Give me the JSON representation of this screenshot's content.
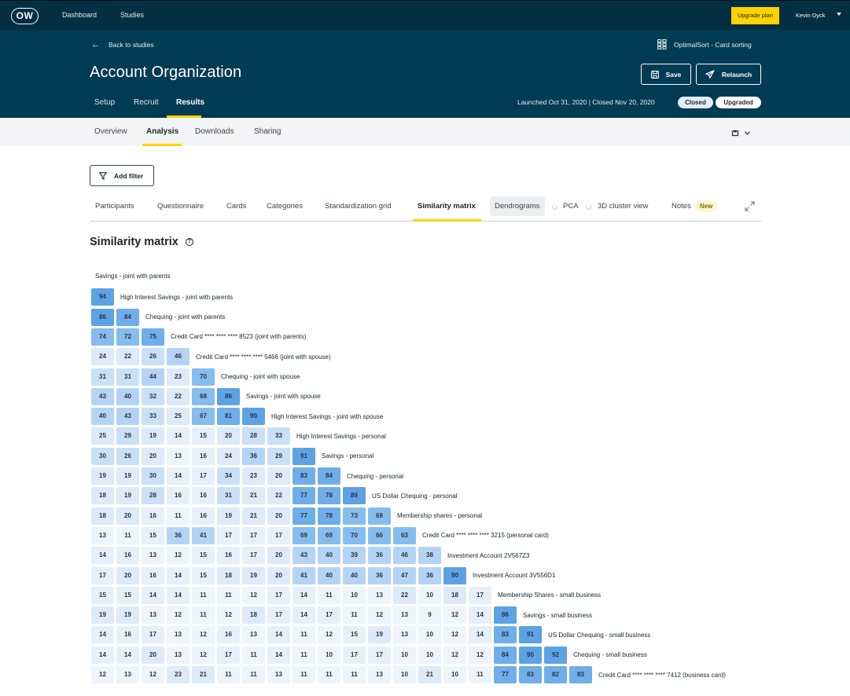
{
  "topnav": {
    "logo": "OW",
    "links": [
      "Dashboard",
      "Studies"
    ],
    "upgrade_label": "Upgrade plan",
    "user_name": "Kevin Dyck"
  },
  "study": {
    "back_label": "Back to studies",
    "title": "Account Organization",
    "type_label": "OptimalSort - Card sorting",
    "save_label": "Save",
    "relaunch_label": "Relaunch",
    "tabs": [
      "Setup",
      "Recruit",
      "Results"
    ],
    "active_tab": "Results",
    "dates": "Launched Oct 31, 2020 | Closed Nov 20, 2020",
    "badges": [
      "Closed",
      "Upgraded"
    ]
  },
  "results_tabs": {
    "items": [
      "Overview",
      "Analysis",
      "Downloads",
      "Sharing"
    ],
    "active": "Analysis"
  },
  "filter": {
    "label": "Add filter"
  },
  "analysis_tabs": {
    "items": [
      "Participants",
      "Questionnaire",
      "Cards",
      "Categories",
      "Standardization grid",
      "Similarity matrix",
      "Dendrograms",
      "PCA",
      "3D cluster view",
      "Notes"
    ],
    "active": "Similarity matrix",
    "new_badge": "New"
  },
  "matrix": {
    "title": "Similarity matrix",
    "colors": {
      "high": "#5fa3e6",
      "mid": "#b7d6f5",
      "low": "#ddebf9",
      "lowest": "#edf4fc"
    },
    "rows": [
      {
        "label": "Savings - joint with parents",
        "values": []
      },
      {
        "label": "High Interest Savings - joint with parents",
        "values": [
          94
        ]
      },
      {
        "label": "Chequing - joint with parents",
        "values": [
          86,
          84
        ]
      },
      {
        "label": "Credit Card **** **** **** 8523 (joint with parents)",
        "values": [
          74,
          72,
          75
        ]
      },
      {
        "label": "Credit Card **** **** **** 5466 (joint with spouse)",
        "values": [
          24,
          22,
          26,
          46
        ]
      },
      {
        "label": "Chequing - joint with spouse",
        "values": [
          31,
          31,
          44,
          23,
          70
        ]
      },
      {
        "label": "Savings - joint with spouse",
        "values": [
          43,
          40,
          32,
          22,
          68,
          86
        ]
      },
      {
        "label": "High Interest Savings - joint with spouse",
        "values": [
          40,
          43,
          33,
          25,
          67,
          81,
          90
        ]
      },
      {
        "label": "High Interest Savings - personal",
        "values": [
          25,
          29,
          19,
          14,
          15,
          20,
          28,
          33
        ]
      },
      {
        "label": "Savings - personal",
        "values": [
          30,
          26,
          20,
          13,
          16,
          24,
          36,
          29,
          91
        ]
      },
      {
        "label": "Chequing - personal",
        "values": [
          19,
          19,
          30,
          14,
          17,
          34,
          23,
          20,
          83,
          84
        ]
      },
      {
        "label": "US Dollar Chequing - personal",
        "values": [
          18,
          19,
          28,
          16,
          16,
          31,
          21,
          22,
          77,
          78,
          89
        ]
      },
      {
        "label": "Membership shares - personal",
        "values": [
          18,
          20,
          16,
          11,
          16,
          19,
          21,
          20,
          77,
          78,
          73,
          69
        ]
      },
      {
        "label": "Credit Card **** **** **** 3215 (personal card)",
        "values": [
          13,
          11,
          15,
          36,
          41,
          17,
          17,
          17,
          69,
          69,
          70,
          66,
          63
        ]
      },
      {
        "label": "Investment Account 2V567Z3",
        "values": [
          14,
          16,
          13,
          12,
          15,
          16,
          17,
          20,
          43,
          40,
          39,
          36,
          46,
          38
        ]
      },
      {
        "label": "Investment Account 3V556D1",
        "values": [
          17,
          20,
          16,
          14,
          15,
          18,
          19,
          20,
          41,
          40,
          40,
          36,
          47,
          36,
          90
        ]
      },
      {
        "label": "Membership Shares - small business",
        "values": [
          15,
          15,
          14,
          14,
          11,
          11,
          12,
          17,
          14,
          11,
          10,
          13,
          22,
          10,
          18,
          17
        ]
      },
      {
        "label": "Savings - small business",
        "values": [
          19,
          19,
          13,
          12,
          11,
          12,
          18,
          17,
          14,
          17,
          11,
          12,
          13,
          9,
          12,
          14,
          86
        ]
      },
      {
        "label": "US Dollar Chequing - small business",
        "values": [
          14,
          16,
          17,
          13,
          12,
          16,
          13,
          14,
          11,
          12,
          15,
          19,
          13,
          10,
          12,
          14,
          83,
          91
        ]
      },
      {
        "label": "Chequing - small business",
        "values": [
          14,
          14,
          20,
          13,
          12,
          17,
          11,
          14,
          11,
          10,
          17,
          17,
          10,
          10,
          12,
          12,
          84,
          90,
          92
        ]
      },
      {
        "label": "Credit Card **** **** **** 7412 (business card)",
        "values": [
          12,
          13,
          12,
          23,
          21,
          11,
          11,
          13,
          11,
          11,
          11,
          13,
          10,
          21,
          10,
          11,
          77,
          83,
          82,
          83
        ]
      }
    ]
  }
}
